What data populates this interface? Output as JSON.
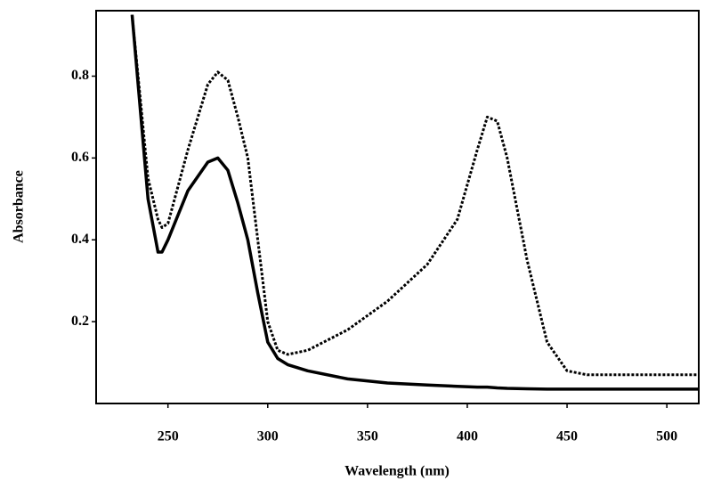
{
  "chart_data": {
    "type": "line",
    "xlabel": "Wavelength (nm)",
    "ylabel": "Absorbance",
    "x": [
      232,
      240,
      245,
      247,
      250,
      260,
      270,
      275,
      280,
      285,
      290,
      295,
      300,
      305,
      310,
      320,
      340,
      360,
      380,
      395,
      405,
      410,
      415,
      420,
      430,
      440,
      450,
      460,
      516
    ],
    "series": [
      {
        "color": "#000000",
        "dash": false,
        "values": [
          0.95,
          0.5,
          0.37,
          0.37,
          0.4,
          0.52,
          0.59,
          0.6,
          0.57,
          0.49,
          0.4,
          0.27,
          0.15,
          0.11,
          0.095,
          0.08,
          0.06,
          0.05,
          0.045,
          0.042,
          0.04,
          0.04,
          0.038,
          0.037,
          0.036,
          0.035,
          0.035,
          0.035,
          0.035
        ]
      },
      {
        "color": "#000000",
        "dash": true,
        "values": [
          0.95,
          0.55,
          0.45,
          0.43,
          0.44,
          0.62,
          0.78,
          0.81,
          0.79,
          0.7,
          0.6,
          0.4,
          0.2,
          0.13,
          0.12,
          0.13,
          0.18,
          0.25,
          0.34,
          0.45,
          0.62,
          0.7,
          0.69,
          0.6,
          0.35,
          0.15,
          0.08,
          0.07,
          0.07
        ]
      }
    ],
    "xlim": [
      214,
      516
    ],
    "xticks": [
      250,
      300,
      350,
      400,
      450,
      500
    ],
    "ylim": [
      0,
      0.96
    ],
    "yticks": [
      0.2,
      0.4,
      0.6,
      0.8
    ]
  }
}
